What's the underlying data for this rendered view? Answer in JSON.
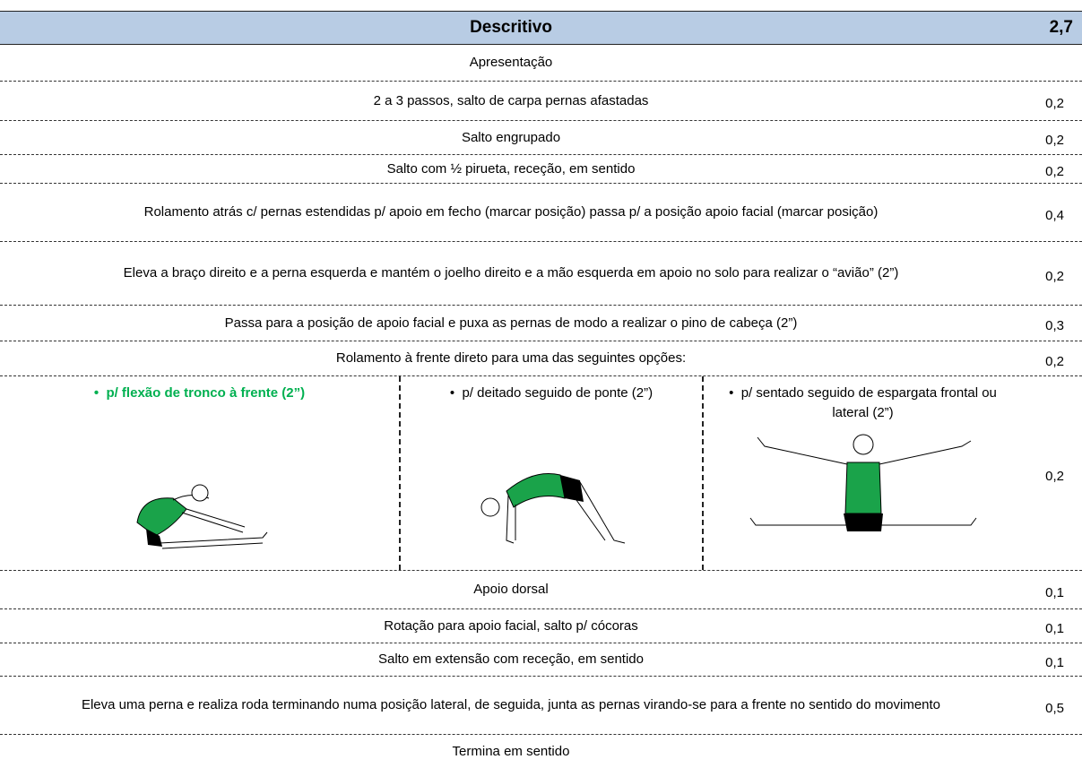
{
  "header": {
    "title": "Descritivo",
    "total": "2,7"
  },
  "rows": [
    {
      "text": "Apresentação"
    },
    {
      "text": "2 a 3 passos, salto de carpa pernas afastadas",
      "points": "0,2"
    },
    {
      "text": "Salto engrupado",
      "points": "0,2"
    },
    {
      "text": "Salto com ½ pirueta, receção, em sentido",
      "points": "0,2"
    },
    {
      "text": "Rolamento atrás c/ pernas estendidas p/ apoio em fecho (marcar posição) passa p/ a posição apoio facial (marcar posição)",
      "points": "0,4"
    },
    {
      "text": "Eleva a braço direito e a perna esquerda e mantém o joelho direito e a mão esquerda em apoio no solo para realizar o “avião” (2”)",
      "points": "0,2"
    },
    {
      "text": "Passa para a posição de apoio facial e puxa as pernas de modo a realizar o pino de cabeça (2”)",
      "points": "0,3"
    },
    {
      "text": "Rolamento à frente direto para uma das seguintes opções:",
      "points": "0,2"
    },
    {
      "options": [
        "p/ flexão de tronco à frente (2”)",
        "p/ deitado seguido de ponte (2”)",
        "p/ sentado seguido de espargata frontal ou lateral (2”)"
      ],
      "points": "0,2"
    },
    {
      "text": "Apoio dorsal",
      "points": "0,1"
    },
    {
      "text": "Rotação para apoio facial, salto p/ cócoras",
      "points": "0,1"
    },
    {
      "text": "Salto em extensão com receção, em sentido",
      "points": "0,1"
    },
    {
      "text": "Eleva uma perna e realiza roda terminando numa posição lateral, de seguida, junta as pernas virando-se para a frente no sentido do movimento",
      "points": "0,5"
    },
    {
      "text": "Termina em sentido"
    }
  ]
}
